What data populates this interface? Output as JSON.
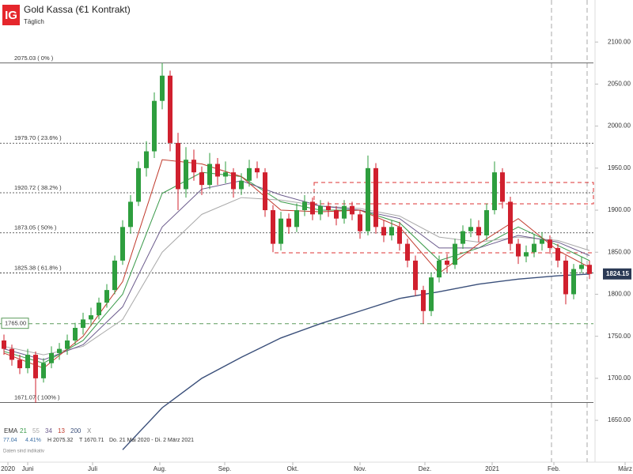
{
  "header": {
    "logo": "IG"
  },
  "chart_data": {
    "type": "candlestick",
    "title": "Gold Kassa (€1 Kontrakt)",
    "subtitle": "Täglich",
    "candles": {
      "open": [
        1745,
        1735,
        1722,
        1712,
        1728,
        1700,
        1718,
        1730,
        1735,
        1745,
        1760,
        1770,
        1775,
        1790,
        1805,
        1840,
        1880,
        1910,
        1950,
        1970,
        2030,
        2060,
        1980,
        1925,
        1960,
        1945,
        1930,
        1955,
        1940,
        1945,
        1925,
        1935,
        1950,
        1945,
        1900,
        1860,
        1890,
        1880,
        1900,
        1910,
        1895,
        1905,
        1900,
        1890,
        1905,
        1895,
        1875,
        1950,
        1880,
        1870,
        1880,
        1860,
        1840,
        1805,
        1780,
        1820,
        1840,
        1835,
        1860,
        1875,
        1880,
        1870,
        1900,
        1945,
        1910,
        1860,
        1845,
        1850,
        1860,
        1865,
        1855,
        1840,
        1800,
        1830,
        1835
      ],
      "high": [
        1752,
        1740,
        1728,
        1735,
        1732,
        1724,
        1738,
        1742,
        1752,
        1766,
        1778,
        1784,
        1796,
        1812,
        1846,
        1888,
        1918,
        1958,
        1982,
        2040,
        2075,
        2066,
        1992,
        1975,
        1972,
        1952,
        1968,
        1962,
        1958,
        1950,
        1944,
        1960,
        1958,
        1950,
        1906,
        1898,
        1896,
        1908,
        1918,
        1915,
        1912,
        1910,
        1905,
        1912,
        1910,
        1900,
        1965,
        1956,
        1888,
        1888,
        1886,
        1866,
        1846,
        1810,
        1826,
        1846,
        1848,
        1866,
        1882,
        1890,
        1888,
        1908,
        1958,
        1950,
        1916,
        1866,
        1858,
        1872,
        1874,
        1870,
        1860,
        1846,
        1836,
        1845,
        1840
      ],
      "low": [
        1728,
        1715,
        1705,
        1706,
        1671,
        1695,
        1712,
        1722,
        1728,
        1740,
        1752,
        1762,
        1770,
        1784,
        1800,
        1835,
        1872,
        1905,
        1940,
        1962,
        2020,
        1970,
        1900,
        1915,
        1935,
        1918,
        1925,
        1930,
        1932,
        1915,
        1918,
        1928,
        1938,
        1892,
        1850,
        1852,
        1872,
        1874,
        1893,
        1888,
        1888,
        1892,
        1882,
        1884,
        1888,
        1866,
        1870,
        1872,
        1862,
        1864,
        1852,
        1832,
        1798,
        1765,
        1774,
        1814,
        1826,
        1830,
        1854,
        1868,
        1862,
        1864,
        1895,
        1902,
        1852,
        1836,
        1838,
        1844,
        1852,
        1848,
        1832,
        1788,
        1794,
        1825,
        1818
      ],
      "close": [
        1735,
        1722,
        1712,
        1728,
        1700,
        1718,
        1730,
        1735,
        1745,
        1760,
        1770,
        1775,
        1790,
        1805,
        1840,
        1880,
        1910,
        1950,
        1970,
        2030,
        2060,
        1980,
        1925,
        1960,
        1945,
        1930,
        1955,
        1940,
        1945,
        1925,
        1935,
        1950,
        1945,
        1900,
        1860,
        1890,
        1880,
        1900,
        1910,
        1895,
        1905,
        1900,
        1890,
        1905,
        1895,
        1875,
        1950,
        1880,
        1870,
        1880,
        1860,
        1840,
        1805,
        1780,
        1820,
        1840,
        1835,
        1860,
        1875,
        1880,
        1870,
        1900,
        1945,
        1910,
        1860,
        1845,
        1850,
        1860,
        1865,
        1855,
        1840,
        1800,
        1830,
        1835,
        1824.15
      ],
      "up_color": "#2e9e3e",
      "down_color": "#d0202e"
    },
    "ema": {
      "label": "EMA",
      "x": [
        0,
        5,
        10,
        15,
        20,
        25,
        30,
        35,
        40,
        45,
        50,
        55,
        60,
        65,
        70,
        74
      ],
      "series": [
        {
          "name": "21",
          "color": "#3a9a4a",
          "values": [
            1732,
            1718,
            1745,
            1800,
            1920,
            1945,
            1940,
            1910,
            1900,
            1900,
            1885,
            1840,
            1855,
            1880,
            1858,
            1840
          ]
        },
        {
          "name": "55",
          "color": "#a9a9a9",
          "values": [
            1738,
            1728,
            1738,
            1770,
            1850,
            1895,
            1915,
            1912,
            1905,
            1902,
            1893,
            1868,
            1862,
            1868,
            1864,
            1852
          ]
        },
        {
          "name": "34",
          "color": "#6b5b8c",
          "values": [
            1735,
            1722,
            1740,
            1785,
            1880,
            1925,
            1935,
            1918,
            1905,
            1900,
            1890,
            1855,
            1855,
            1870,
            1862,
            1846
          ]
        },
        {
          "name": "13",
          "color": "#c0392b",
          "values": [
            1730,
            1712,
            1750,
            1815,
            1960,
            1955,
            1940,
            1900,
            1898,
            1900,
            1880,
            1825,
            1860,
            1890,
            1852,
            1832
          ]
        },
        {
          "name": "200",
          "color": "#3a4f7a",
          "values": [
            null,
            null,
            null,
            1615,
            1665,
            1700,
            1725,
            1748,
            1765,
            1780,
            1795,
            1803,
            1812,
            1818,
            1822,
            1824
          ]
        }
      ],
      "close_label": "X"
    },
    "levels": [
      {
        "value": 2075.03,
        "label": "2075.03 ( 0% )"
      },
      {
        "value": 1979.7,
        "label": "1979.70 ( 23.6% )"
      },
      {
        "value": 1920.72,
        "label": "1920.72 ( 38.2% )"
      },
      {
        "value": 1873.05,
        "label": "1873.05 ( 50% )"
      },
      {
        "value": 1825.38,
        "label": "1825.38 ( 61.8% )"
      },
      {
        "value": 1671.07,
        "label": "1671.07 ( 100% )"
      }
    ],
    "support": {
      "value": 1765,
      "label": "1765.00"
    },
    "xlim": [
      -0.5,
      74.5
    ],
    "xticks": [
      {
        "value": 0.5,
        "label": "2020"
      },
      {
        "value": 3,
        "label": "Juni"
      },
      {
        "value": 11.2,
        "label": "Juli"
      },
      {
        "value": 19.7,
        "label": "Aug."
      },
      {
        "value": 27.9,
        "label": "Sep."
      },
      {
        "value": 36.5,
        "label": "Okt."
      },
      {
        "value": 45,
        "label": "Nov."
      },
      {
        "value": 53.2,
        "label": "Dez."
      },
      {
        "value": 61.7,
        "label": "2021"
      },
      {
        "value": 69.5,
        "label": "Feb."
      },
      {
        "value": 78.5,
        "label": "März"
      }
    ],
    "ylim": [
      1620,
      2150
    ],
    "yticks": [
      {
        "value": 1650,
        "label": "1650.00"
      },
      {
        "value": 1700,
        "label": "1700.00"
      },
      {
        "value": 1750,
        "label": "1750.00"
      },
      {
        "value": 1800,
        "label": "1800.00"
      },
      {
        "value": 1850,
        "label": "1850.00"
      },
      {
        "value": 1900,
        "label": "1900.00"
      },
      {
        "value": 1950,
        "label": "1950.00"
      },
      {
        "value": 2000,
        "label": "2000.00"
      },
      {
        "value": 2050,
        "label": "2050.00"
      },
      {
        "value": 2100,
        "label": "2100.00"
      }
    ]
  },
  "footer": {
    "stats": [
      "77.04",
      "4.41%",
      "H 2075.32",
      "T 1670.71",
      "Do. 21 Mai 2020 - Di. 2 März 2021"
    ],
    "note": "Daten sind indikativ"
  }
}
